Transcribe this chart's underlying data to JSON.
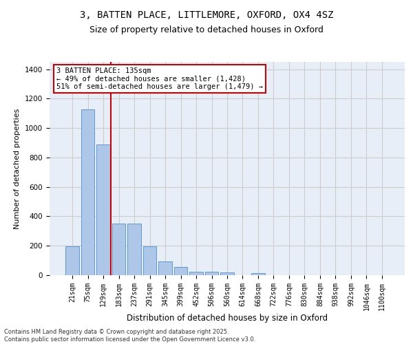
{
  "title_line1": "3, BATTEN PLACE, LITTLEMORE, OXFORD, OX4 4SZ",
  "title_line2": "Size of property relative to detached houses in Oxford",
  "xlabel": "Distribution of detached houses by size in Oxford",
  "ylabel": "Number of detached properties",
  "categories": [
    "21sqm",
    "75sqm",
    "129sqm",
    "183sqm",
    "237sqm",
    "291sqm",
    "345sqm",
    "399sqm",
    "452sqm",
    "506sqm",
    "560sqm",
    "614sqm",
    "668sqm",
    "722sqm",
    "776sqm",
    "830sqm",
    "884sqm",
    "938sqm",
    "992sqm",
    "1046sqm",
    "1100sqm"
  ],
  "values": [
    195,
    1125,
    890,
    350,
    350,
    195,
    95,
    55,
    25,
    22,
    18,
    0,
    12,
    0,
    0,
    0,
    0,
    0,
    0,
    0,
    0
  ],
  "bar_color": "#aec6e8",
  "bar_edge_color": "#5b9bd5",
  "vline_x_index": 2.5,
  "vline_color": "#cc0000",
  "annotation_text": "3 BATTEN PLACE: 135sqm\n← 49% of detached houses are smaller (1,428)\n51% of semi-detached houses are larger (1,479) →",
  "annotation_box_color": "#ffffff",
  "annotation_box_edge_color": "#cc0000",
  "ylim": [
    0,
    1450
  ],
  "yticks": [
    0,
    200,
    400,
    600,
    800,
    1000,
    1200,
    1400
  ],
  "grid_color": "#cccccc",
  "bg_color": "#e8eef7",
  "footnote": "Contains HM Land Registry data © Crown copyright and database right 2025.\nContains public sector information licensed under the Open Government Licence v3.0.",
  "title_fontsize": 10,
  "subtitle_fontsize": 9,
  "tick_fontsize": 7,
  "ylabel_fontsize": 8,
  "xlabel_fontsize": 8.5,
  "annotation_fontsize": 7.5,
  "footnote_fontsize": 6
}
